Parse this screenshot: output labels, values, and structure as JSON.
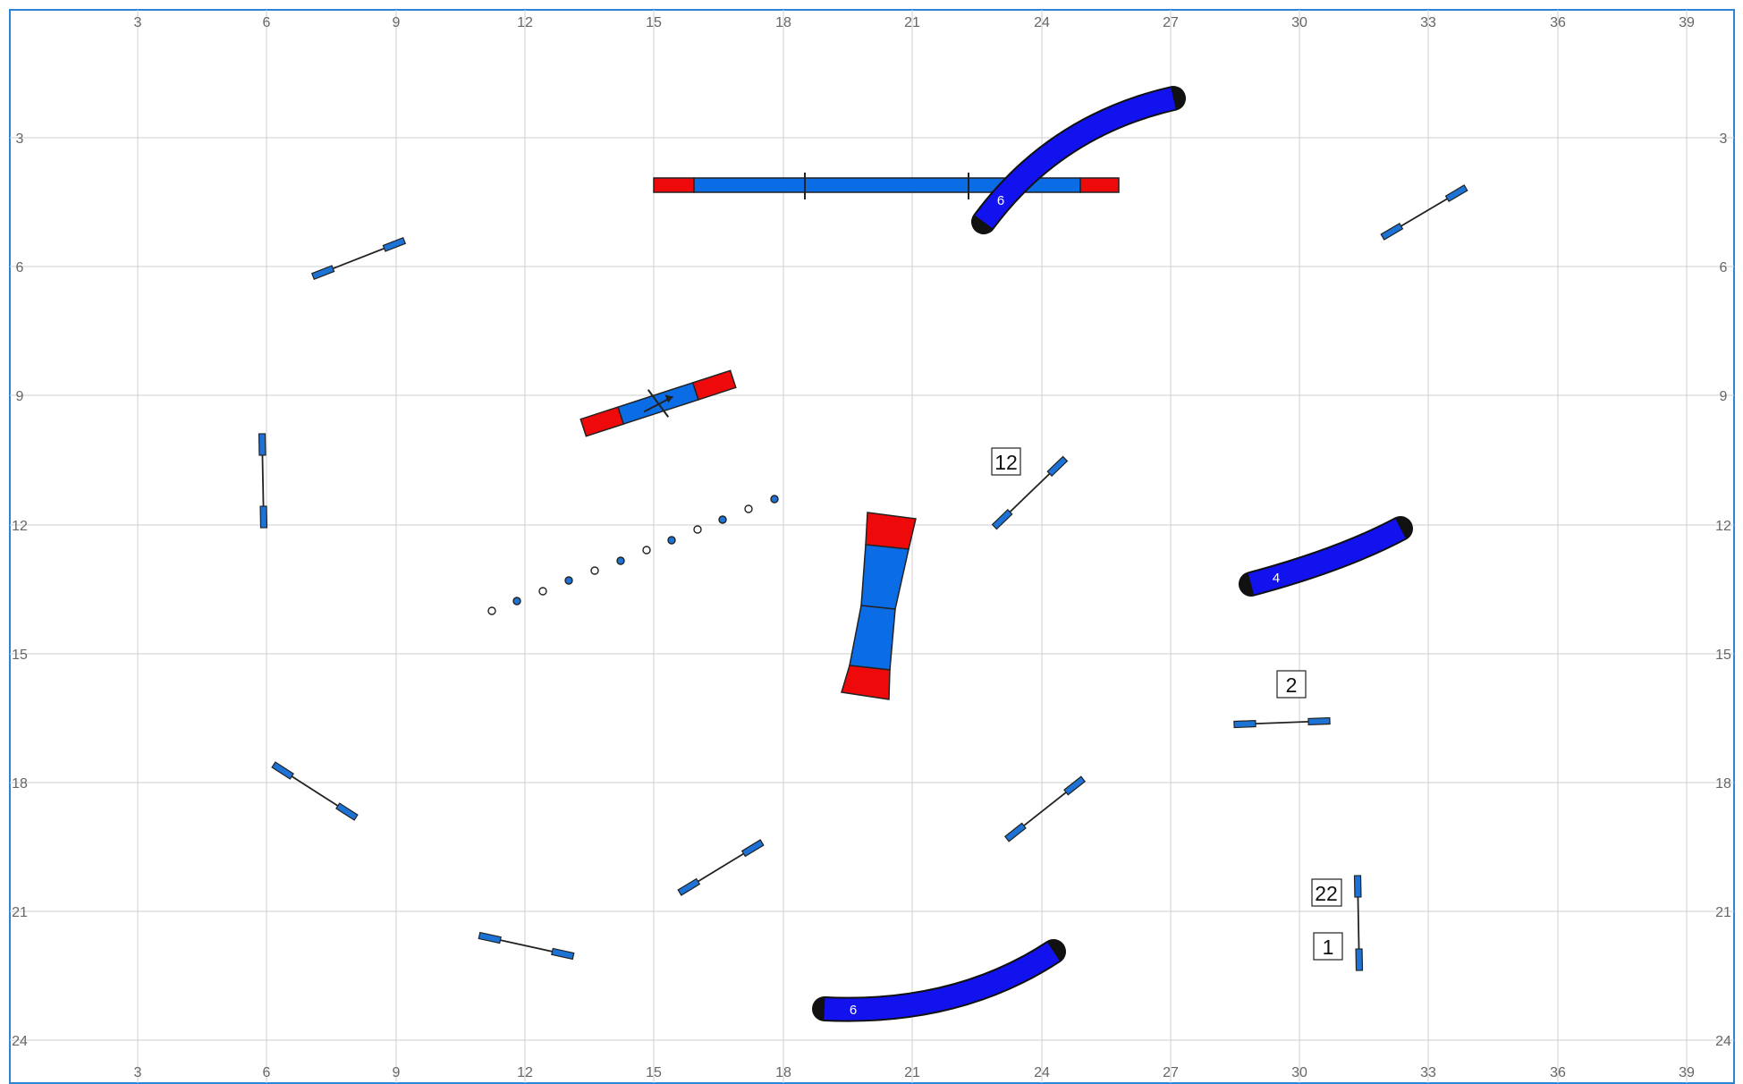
{
  "course_map": {
    "x_ticks": [
      "3",
      "6",
      "9",
      "12",
      "15",
      "18",
      "21",
      "24",
      "27",
      "30",
      "33",
      "36",
      "39"
    ],
    "y_ticks": [
      "3",
      "6",
      "9",
      "12",
      "15",
      "18",
      "21",
      "24"
    ]
  },
  "colors": {
    "canvas_border": "#2a86d4",
    "grid": "#cfcfcf",
    "tick_text": "#666666",
    "tunnel": "#1212ee",
    "tunnel_edge": "#111111",
    "contact_red": "#ee0a0a",
    "plank_blue": "#0a6de6",
    "pole_blue": "#1d72d6",
    "stroke": "#222222"
  },
  "equipment": {
    "tunnel_top_label": "6",
    "tunnel_right_label": "4",
    "tunnel_bottom_label": "6",
    "number_marks": [
      {
        "id": "12",
        "label": "12"
      },
      {
        "id": "2",
        "label": "2"
      },
      {
        "id": "22",
        "label": "22"
      },
      {
        "id": "1",
        "label": "1"
      }
    ]
  }
}
